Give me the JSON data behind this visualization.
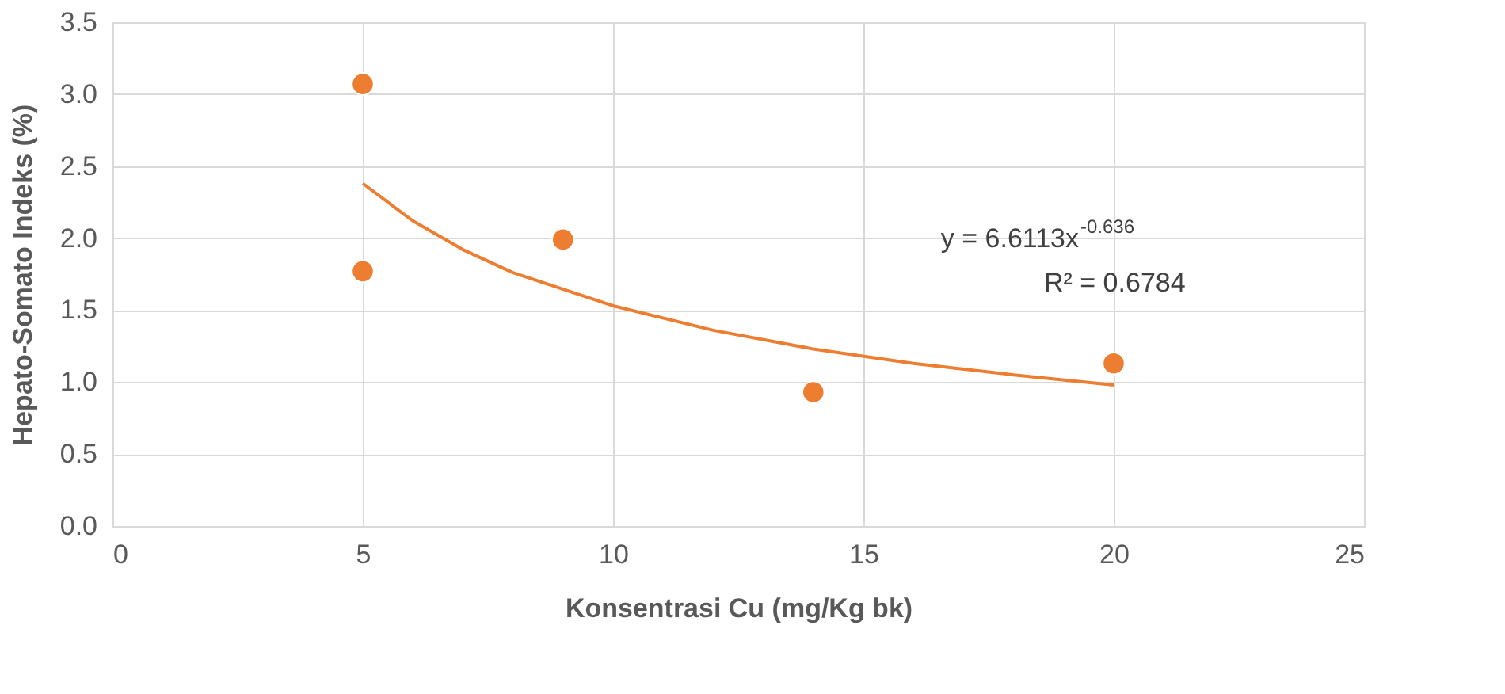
{
  "chart_data": {
    "type": "scatter",
    "xlabel": "Konsentrasi Cu (mg/Kg bk)",
    "ylabel": "Hepato-Somato Indeks (%)",
    "series": [
      {
        "color": "#ed7d31",
        "marker": "circle",
        "x": [
          5,
          5,
          9,
          14,
          20
        ],
        "values": [
          3.07,
          1.77,
          1.99,
          0.93,
          1.13
        ]
      },
      {
        "type": "line",
        "color": "#ed7d31",
        "marker": "none",
        "line_style": "solid",
        "x": [
          5,
          6,
          7,
          8,
          10,
          12,
          14,
          16,
          18,
          20
        ],
        "values": [
          2.38,
          2.12,
          1.92,
          1.76,
          1.53,
          1.36,
          1.23,
          1.13,
          1.05,
          0.98
        ]
      }
    ],
    "annotations": [
      "y = 6.6113x$^{-0.636}$",
      "R² = 0.6784"
    ],
    "xlim": [
      0,
      25
    ],
    "xticks": [
      0,
      5,
      10,
      15,
      20,
      25
    ],
    "ylim": [
      0,
      3.5
    ],
    "yticks": [
      {
        "value": 0,
        "label": "0.0"
      },
      0.5,
      {
        "value": 1,
        "label": "1.0"
      },
      1.5,
      {
        "value": 2,
        "label": "2.0"
      },
      2.5,
      {
        "value": 3,
        "label": "3.0"
      },
      3.5
    ],
    "grid": true
  }
}
